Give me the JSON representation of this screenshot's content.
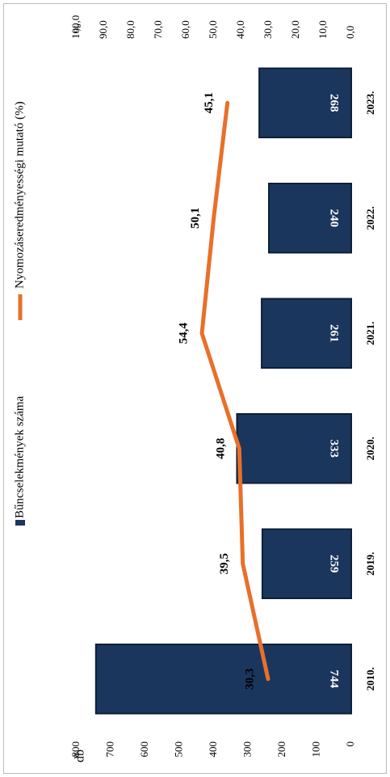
{
  "chart_data": {
    "type": "bar",
    "categories": [
      "2010.",
      "2019.",
      "2020.",
      "2021.",
      "2022.",
      "2023."
    ],
    "series": [
      {
        "name": "Bűncselekmények száma",
        "type": "bar",
        "color": "#1b365d",
        "values": [
          744,
          259,
          333,
          261,
          240,
          268
        ]
      },
      {
        "name": "Nyomozáseredményességi mutató (%)",
        "type": "line",
        "axis": "y2",
        "color": "#e8702a",
        "values": [
          30.3,
          39.5,
          40.8,
          54.4,
          50.1,
          45.1
        ],
        "value_labels": [
          "30,3",
          "39,5",
          "40,8",
          "54,4",
          "50,1",
          "45,1"
        ]
      }
    ],
    "y_label": "db",
    "y2_label": "%",
    "ylim": [
      0,
      800
    ],
    "yticks": [
      0,
      100,
      200,
      300,
      400,
      500,
      600,
      700,
      800
    ],
    "y2lim": [
      0,
      100
    ],
    "y2ticks": [
      {
        "value": 0,
        "label": "0,0"
      },
      {
        "value": 10,
        "label": "10,0"
      },
      {
        "value": 20,
        "label": "20,0"
      },
      {
        "value": 30,
        "label": "30,0"
      },
      {
        "value": 40,
        "label": "40,0"
      },
      {
        "value": 50,
        "label": "50,0"
      },
      {
        "value": 60,
        "label": "60,0"
      },
      {
        "value": 70,
        "label": "70,0"
      },
      {
        "value": 80,
        "label": "80,0"
      },
      {
        "value": 90,
        "label": "90,0"
      },
      {
        "value": 100,
        "label": "100,0"
      }
    ]
  }
}
